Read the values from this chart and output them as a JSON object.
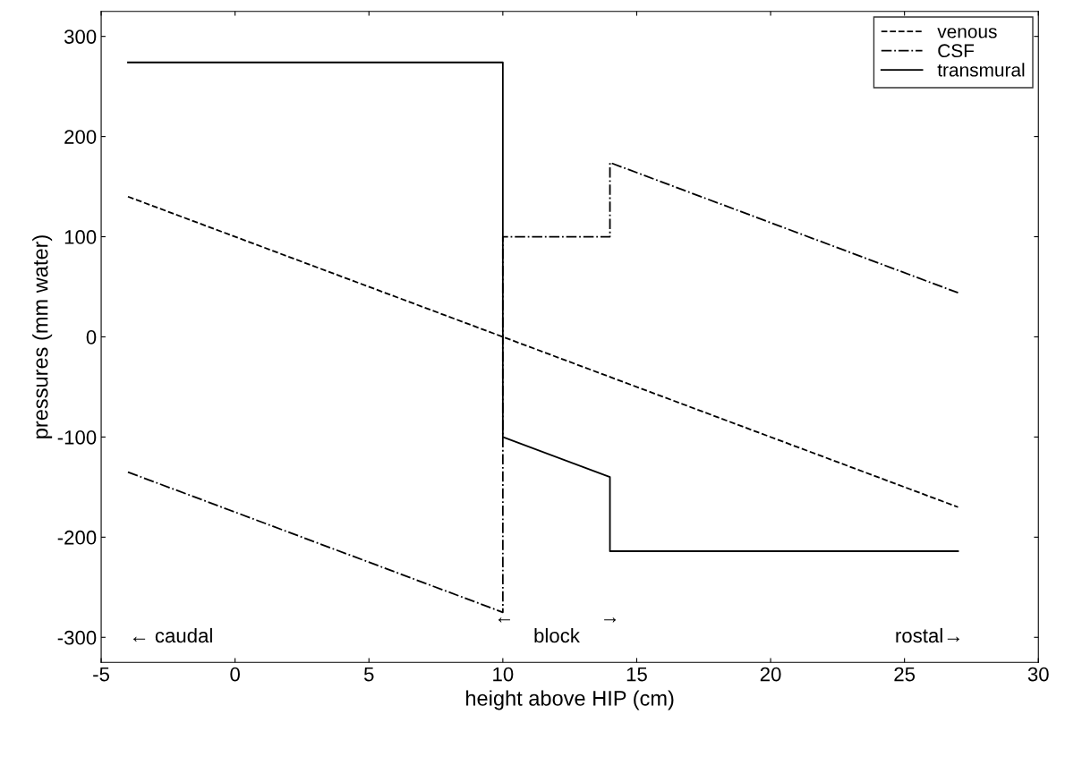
{
  "chart_data": {
    "type": "line",
    "xlabel": "height above HIP (cm)",
    "ylabel": "pressures (mm water)",
    "xlim": [
      -5,
      30
    ],
    "xticks": [
      -5,
      0,
      5,
      10,
      15,
      20,
      25,
      30
    ],
    "ylim": [
      -325,
      325
    ],
    "yticks": [
      -300,
      -200,
      -100,
      0,
      100,
      200,
      300
    ],
    "grid": false,
    "legend": "top right",
    "series": [
      {
        "name": "venous",
        "color": "#000000",
        "line_style": "dashed",
        "x": [
          -4,
          27
        ],
        "values": [
          140,
          -170
        ]
      },
      {
        "name": "CSF",
        "color": "#000000",
        "line_style": "dashdot",
        "x": [
          -4,
          10,
          10,
          14,
          14,
          27
        ],
        "values": [
          -135,
          -275,
          100,
          100,
          174,
          44
        ]
      },
      {
        "name": "transmural",
        "color": "#000000",
        "line_style": "solid",
        "x": [
          -4,
          10,
          10,
          14,
          14,
          27
        ],
        "values": [
          274,
          274,
          -100,
          -140,
          -214,
          -214
        ]
      }
    ],
    "annotations": [
      "← caudal",
      "←",
      "→",
      "block",
      "rostal→"
    ]
  }
}
